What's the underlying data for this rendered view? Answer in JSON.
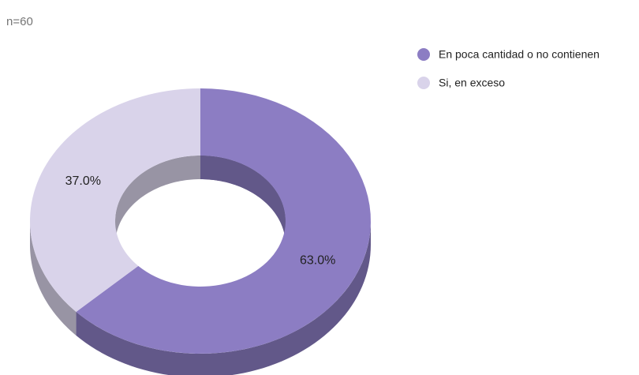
{
  "chart_data": {
    "type": "pie3d-donut",
    "subtitle": "n=60",
    "categories": [
      "En poca cantidad o no contienen",
      "Si, en exceso"
    ],
    "values": [
      63,
      37
    ],
    "value_labels": [
      "63.0%",
      "37.0%"
    ],
    "colors": [
      "#8c7dc3",
      "#d9d3ea"
    ]
  }
}
